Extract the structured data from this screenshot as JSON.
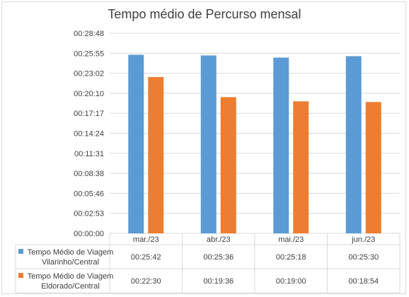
{
  "chart_data": {
    "type": "bar",
    "title": "Tempo médio de Percurso mensal",
    "categories": [
      "mar./23",
      "abr./23",
      "mai./23",
      "jun./23"
    ],
    "y_ticks": [
      "00:00:00",
      "00:02:53",
      "00:05:46",
      "00:08:38",
      "00:11:31",
      "00:14:24",
      "00:17:17",
      "00:20:10",
      "00:23:02",
      "00:25:55",
      "00:28:48"
    ],
    "ylim_seconds": [
      0,
      1728
    ],
    "grid": true,
    "legend": "data-table",
    "series": [
      {
        "name_lines": [
          "Tempo Médio de Viagem",
          "Vilarinho/Central"
        ],
        "color": "#5b9bd5",
        "labels": [
          "00:25:42",
          "00:25:36",
          "00:25:18",
          "00:25:30"
        ],
        "values_seconds": [
          1542,
          1536,
          1518,
          1530
        ]
      },
      {
        "name_lines": [
          "Tempo Médio de Viagem",
          "Eldorado/Central"
        ],
        "color": "#ed7d31",
        "labels": [
          "00:22:30",
          "00:19:36",
          "00:19:00",
          "00:18:54"
        ],
        "values_seconds": [
          1350,
          1176,
          1140,
          1134
        ]
      }
    ]
  }
}
